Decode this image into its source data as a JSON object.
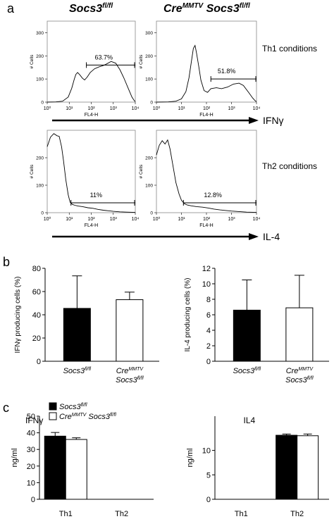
{
  "panel_letters": {
    "a": "a",
    "b": "b",
    "c": "c"
  },
  "headers": {
    "wt": {
      "main": "Socs3",
      "sup": "fl/fl"
    },
    "cre": {
      "main": "Cre",
      "sup": "MMTV",
      "main2": " Socs3",
      "sup2": "fl/fl"
    }
  },
  "conditions": {
    "th1": "Th1 conditions",
    "th2": "Th2 conditions"
  },
  "arrows": {
    "ifng": "IFNγ",
    "il4": "IL-4"
  },
  "chart_data": [
    {
      "type": "line",
      "panel": "a",
      "id": "h1",
      "ylabel": "# Cells",
      "xlabel": "FL4-H",
      "xscale": "log",
      "xlim": [
        1,
        10000
      ],
      "ylim": [
        0,
        350
      ],
      "yticks": [
        "0",
        "100",
        "200",
        "300"
      ],
      "xticks": [
        "10⁰",
        "10¹",
        "10²",
        "10³",
        "10⁴"
      ],
      "gate": {
        "label": "63.7%",
        "x_from": 60,
        "x_to": 10000,
        "y": 160
      },
      "points": [
        [
          1,
          0
        ],
        [
          2.5,
          1
        ],
        [
          5,
          4
        ],
        [
          9,
          22
        ],
        [
          13,
          60
        ],
        [
          17,
          100
        ],
        [
          20,
          120
        ],
        [
          24,
          128
        ],
        [
          30,
          118
        ],
        [
          40,
          103
        ],
        [
          50,
          96
        ],
        [
          65,
          108
        ],
        [
          90,
          128
        ],
        [
          140,
          144
        ],
        [
          220,
          152
        ],
        [
          350,
          158
        ],
        [
          500,
          165
        ],
        [
          800,
          176
        ],
        [
          1300,
          168
        ],
        [
          2000,
          140
        ],
        [
          3000,
          105
        ],
        [
          5000,
          55
        ],
        [
          7000,
          22
        ],
        [
          9000,
          6
        ],
        [
          10000,
          2
        ]
      ]
    },
    {
      "type": "line",
      "panel": "a",
      "id": "h2",
      "ylabel": "# Cells",
      "xlabel": "FL4-H",
      "xscale": "log",
      "xlim": [
        1,
        10000
      ],
      "ylim": [
        0,
        350
      ],
      "yticks": [
        "0",
        "100",
        "200",
        "300"
      ],
      "xticks": [
        "10⁰",
        "10¹",
        "10²",
        "10³",
        "10⁴"
      ],
      "gate": {
        "label": "51.8%",
        "x_from": 150,
        "x_to": 10000,
        "y": 100
      },
      "points": [
        [
          1,
          0
        ],
        [
          3,
          1
        ],
        [
          6,
          4
        ],
        [
          10,
          14
        ],
        [
          15,
          45
        ],
        [
          20,
          105
        ],
        [
          25,
          175
        ],
        [
          30,
          232
        ],
        [
          35,
          245
        ],
        [
          40,
          212
        ],
        [
          50,
          150
        ],
        [
          60,
          95
        ],
        [
          80,
          50
        ],
        [
          110,
          42
        ],
        [
          150,
          58
        ],
        [
          250,
          62
        ],
        [
          400,
          58
        ],
        [
          700,
          65
        ],
        [
          1200,
          78
        ],
        [
          2000,
          82
        ],
        [
          3000,
          72
        ],
        [
          5000,
          40
        ],
        [
          7000,
          18
        ],
        [
          9000,
          5
        ],
        [
          10000,
          2
        ]
      ]
    },
    {
      "type": "line",
      "panel": "a",
      "id": "h3",
      "ylabel": "# Cells",
      "xlabel": "FL4-H",
      "xscale": "log",
      "xlim": [
        1,
        10000
      ],
      "ylim": [
        0,
        300
      ],
      "yticks": [
        "0",
        "100",
        "200"
      ],
      "xticks": [
        "10⁰",
        "10¹",
        "10²",
        "10³",
        "10⁴"
      ],
      "gate": {
        "label": "11%",
        "x_from": 12,
        "x_to": 10000,
        "y": 36
      },
      "points": [
        [
          1,
          240
        ],
        [
          1.4,
          275
        ],
        [
          2,
          288
        ],
        [
          2.8,
          280
        ],
        [
          3.5,
          278
        ],
        [
          4.5,
          240
        ],
        [
          5.5,
          190
        ],
        [
          7,
          120
        ],
        [
          9,
          65
        ],
        [
          11,
          38
        ],
        [
          14,
          30
        ],
        [
          18,
          27
        ],
        [
          25,
          24
        ],
        [
          40,
          22
        ],
        [
          70,
          18
        ],
        [
          120,
          16
        ],
        [
          200,
          12
        ],
        [
          350,
          9
        ],
        [
          600,
          7
        ],
        [
          1000,
          5
        ],
        [
          2000,
          3
        ],
        [
          4000,
          2
        ],
        [
          10000,
          1
        ]
      ]
    },
    {
      "type": "line",
      "panel": "a",
      "id": "h4",
      "ylabel": "# Cells",
      "xlabel": "FL4-H",
      "xscale": "log",
      "xlim": [
        1,
        10000
      ],
      "ylim": [
        0,
        300
      ],
      "yticks": [
        "0",
        "100",
        "200"
      ],
      "xticks": [
        "10⁰",
        "10¹",
        "10²",
        "10³",
        "10⁴"
      ],
      "gate": {
        "label": "12.8%",
        "x_from": 12,
        "x_to": 10000,
        "y": 36
      },
      "points": [
        [
          1,
          210
        ],
        [
          1.3,
          245
        ],
        [
          1.7,
          262
        ],
        [
          2.2,
          250
        ],
        [
          2.8,
          265
        ],
        [
          3.5,
          232
        ],
        [
          4.5,
          175
        ],
        [
          6,
          110
        ],
        [
          8,
          68
        ],
        [
          10,
          45
        ],
        [
          13,
          33
        ],
        [
          17,
          28
        ],
        [
          25,
          25
        ],
        [
          40,
          22
        ],
        [
          70,
          20
        ],
        [
          120,
          17
        ],
        [
          200,
          13
        ],
        [
          350,
          10
        ],
        [
          600,
          8
        ],
        [
          1000,
          6
        ],
        [
          2000,
          4
        ],
        [
          4000,
          2
        ],
        [
          10000,
          1
        ]
      ]
    },
    {
      "type": "bar",
      "panel": "b",
      "id": "b1",
      "ylabel": "IFNγ producing cells (%)",
      "ylim": [
        0,
        80
      ],
      "yticks": [
        "0",
        "20",
        "40",
        "60",
        "80"
      ],
      "categories": [
        {
          "main": "Socs3",
          "sup": "fl/fl"
        },
        {
          "main": "Cre",
          "sup": "MMTV",
          "line2": "Socs3",
          "sup2": "fl/fl"
        }
      ],
      "values": [
        45.5,
        53
      ],
      "errors": [
        28,
        6.5
      ],
      "fills": [
        "#000000",
        "#ffffff"
      ]
    },
    {
      "type": "bar",
      "panel": "b",
      "id": "b2",
      "ylabel": "IL-4 producing cells (%)",
      "ylim": [
        0,
        12
      ],
      "yticks": [
        "0",
        "2",
        "4",
        "6",
        "8",
        "10",
        "12"
      ],
      "categories": [
        {
          "main": "Socs3",
          "sup": "fl/fl"
        },
        {
          "main": "Cre",
          "sup": "MMTV",
          "line2": "Socs3",
          "sup2": "fl/fl"
        }
      ],
      "values": [
        6.6,
        6.9
      ],
      "errors": [
        3.9,
        4.2
      ],
      "fills": [
        "#000000",
        "#ffffff"
      ]
    },
    {
      "type": "bar",
      "panel": "c",
      "id": "c1",
      "title": "IFNγ",
      "ylabel": "ng/ml",
      "ylim": [
        0,
        50
      ],
      "yticks": [
        "0",
        "10",
        "20",
        "30",
        "40",
        "50"
      ],
      "categories": [
        "Th1",
        "Th2"
      ],
      "series": [
        {
          "name": "Socs3fl/fl",
          "values": [
            38,
            0
          ],
          "errors": [
            2.2,
            0
          ],
          "fill": "#000000"
        },
        {
          "name": "CreMMTV Socs3fl/fl",
          "values": [
            36,
            0
          ],
          "errors": [
            1,
            0
          ],
          "fill": "#ffffff"
        }
      ],
      "legend": [
        {
          "main": "Socs3",
          "sup": "fl/fl",
          "fill": "#000000"
        },
        {
          "main": "Cre",
          "sup": "MMTV",
          "main2": " Socs3",
          "sup2": "fl/fl",
          "fill": "#ffffff"
        }
      ]
    },
    {
      "type": "bar",
      "panel": "c",
      "id": "c2",
      "title": "IL4",
      "ylabel": "ng/ml",
      "ylim": [
        0,
        17
      ],
      "yticks": [
        "0",
        "5",
        "10"
      ],
      "categories": [
        "Th1",
        "Th2"
      ],
      "series": [
        {
          "name": "Socs3fl/fl",
          "values": [
            0,
            13.1
          ],
          "errors": [
            0,
            0.25
          ],
          "fill": "#000000"
        },
        {
          "name": "CreMMTV Socs3fl/fl",
          "values": [
            0,
            13
          ],
          "errors": [
            0,
            0.35
          ],
          "fill": "#ffffff"
        }
      ]
    }
  ]
}
